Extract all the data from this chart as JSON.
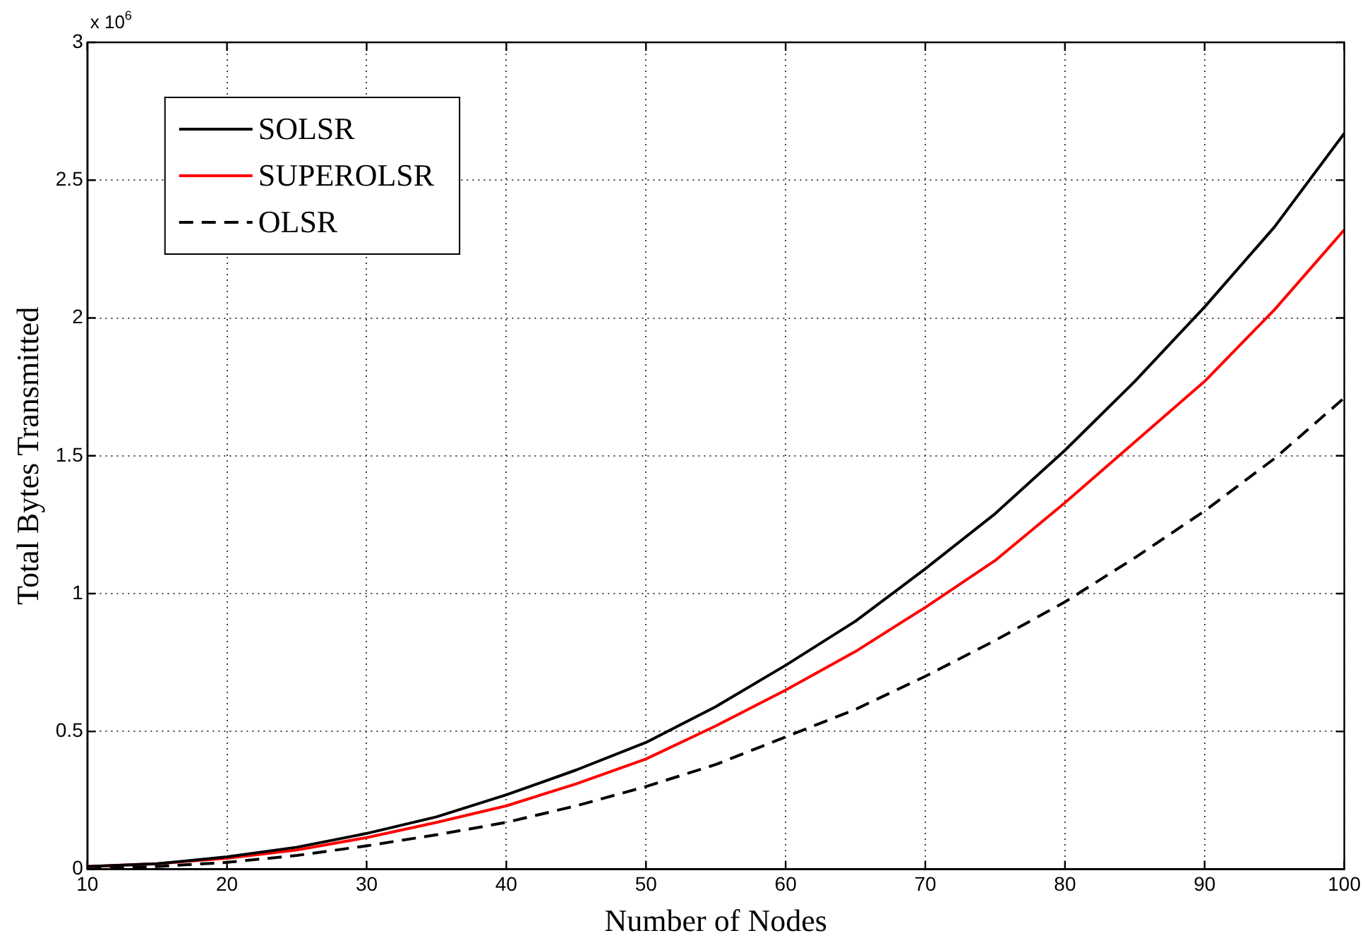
{
  "chart_data": {
    "type": "line",
    "xlabel": "Number of Nodes",
    "ylabel": "Total Bytes Transmitted",
    "annotations": [
      "x 10$^{6}$"
    ],
    "x": [
      10,
      15,
      20,
      25,
      30,
      35,
      40,
      45,
      50,
      55,
      60,
      65,
      70,
      75,
      80,
      85,
      90,
      95,
      100
    ],
    "series": [
      {
        "name": "SOLSR",
        "color": "#000000",
        "line_style": "solid",
        "values": [
          0.01,
          0.02,
          0.045,
          0.08,
          0.13,
          0.19,
          0.27,
          0.36,
          0.46,
          0.59,
          0.74,
          0.9,
          1.09,
          1.29,
          1.52,
          1.77,
          2.04,
          2.33,
          2.67
        ]
      },
      {
        "name": "SUPEROLSR",
        "color": "#ff0000",
        "line_style": "solid",
        "values": [
          0.01,
          0.02,
          0.04,
          0.07,
          0.115,
          0.17,
          0.23,
          0.31,
          0.4,
          0.52,
          0.65,
          0.79,
          0.95,
          1.12,
          1.33,
          1.55,
          1.77,
          2.03,
          2.32
        ]
      },
      {
        "name": "OLSR",
        "color": "#000000",
        "line_style": "dashed",
        "values": [
          0.0,
          0.01,
          0.025,
          0.05,
          0.085,
          0.125,
          0.17,
          0.23,
          0.3,
          0.38,
          0.48,
          0.58,
          0.7,
          0.83,
          0.97,
          1.13,
          1.3,
          1.49,
          1.71
        ]
      }
    ],
    "xlim": [
      10,
      100
    ],
    "xticks": [
      10,
      20,
      30,
      40,
      50,
      60,
      70,
      80,
      90,
      100
    ],
    "ylim": [
      0,
      3
    ],
    "yticks": [
      0,
      0.5,
      1,
      1.5,
      2,
      2.5,
      3
    ],
    "grid": true,
    "legend": "top left",
    "marker": "none"
  }
}
